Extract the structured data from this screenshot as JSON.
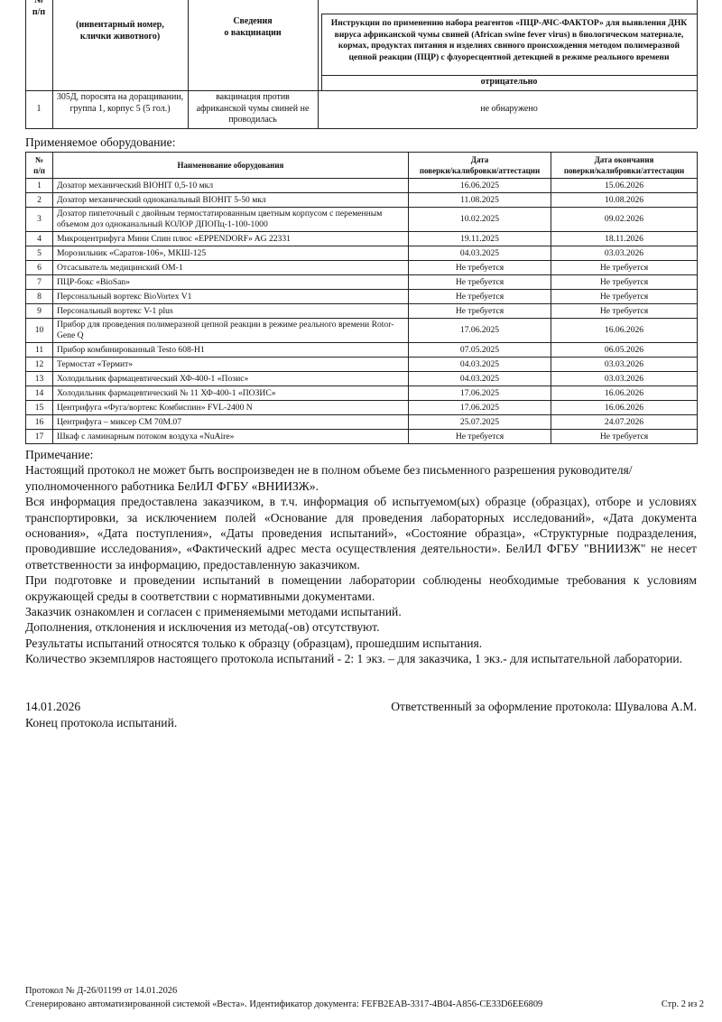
{
  "sample_table": {
    "headers": {
      "number": "№\nп/п",
      "animal": "(инвентарный номер,\nклички животного)",
      "vaccination": "Сведения\nо вакцинации",
      "method": "Инструкции по применению набора реагентов «ПЦР-АЧС-ФАКТОР» для выявления ДНК вируса африканской чумы свиней (African swine fever virus) в биологическом материале, кормах, продуктах питания и изделиях свиного происхождения методом полимеразной цепной реакции (ПЦР) с флуоресцентной детекцией в режиме реального времени"
    },
    "result_header": "отрицательно",
    "rows": [
      [
        "1",
        "305Д, поросята на доращивании, группа 1, корпус 5 (5 гол.)",
        "вакцинация против африканской чумы свиней не проводилась",
        "не обнаружено"
      ]
    ]
  },
  "equipment": {
    "title": "Применяемое оборудование:",
    "headers": [
      "№\nп/п",
      "Наименование оборудования",
      "Дата\nповерки/калибровки/аттестации",
      "Дата окончания\nповерки/калибровки/аттестации"
    ],
    "rows": [
      [
        "1",
        "Дозатор механический ВІОНІТ 0,5-10 мкл",
        "16.06.2025",
        "15.06.2026"
      ],
      [
        "2",
        "Дозатор механический одноканальный ВІОНІТ 5-50 мкл",
        "11.08.2025",
        "10.08.2026"
      ],
      [
        "3",
        "Дозатор пипеточный с двойным термостатированным цветным корпусом с переменным объемом доз одноканальный КОЛОР ДПОПц-1-100-1000",
        "10.02.2025",
        "09.02.2026"
      ],
      [
        "4",
        "Микроцентрифуга Мини Спин плюс «EPPENDORF» AG 22331",
        "19.11.2025",
        "18.11.2026"
      ],
      [
        "5",
        "Морозильник «Саратов-106», МКШ-125",
        "04.03.2025",
        "03.03.2026"
      ],
      [
        "6",
        "Отсасыватель медицинский ОМ-1",
        "Не требуется",
        "Не требуется"
      ],
      [
        "7",
        "ПЦР-бокс «BioSan»",
        "Не требуется",
        "Не требуется"
      ],
      [
        "8",
        "Персональный вортекс BioVortex V1",
        "Не требуется",
        "Не требуется"
      ],
      [
        "9",
        "Персональный вортекс V-1 plus",
        "Не требуется",
        "Не требуется"
      ],
      [
        "10",
        "Прибор для проведения полимеразной цепной реакции в режиме реального времени Rotor-Gene Q",
        "17.06.2025",
        "16.06.2026"
      ],
      [
        "11",
        "Прибор комбинированный Testo 608-H1",
        "07.05.2025",
        "06.05.2026"
      ],
      [
        "12",
        "Термостат «Термит»",
        "04.03.2025",
        "03.03.2026"
      ],
      [
        "13",
        "Холодильник фармацевтический ХФ-400-1 «Позис»",
        "04.03.2025",
        "03.03.2026"
      ],
      [
        "14",
        "Холодильник фармацевтический № 11 ХФ-400-1 «ПОЗИС»",
        "17.06.2025",
        "16.06.2026"
      ],
      [
        "15",
        "Центрифуга «Фуга/вортекс Комбиспин» FVL-2400 N",
        "17.06.2025",
        "16.06.2026"
      ],
      [
        "16",
        "Центрифуга – миксер СМ 70М.07",
        "25.07.2025",
        "24.07.2026"
      ],
      [
        "17",
        "Шкаф с ламинарным потоком воздуха «NuAire»",
        "Не требуется",
        "Не требуется"
      ]
    ]
  },
  "notes": {
    "title": "Примечание:",
    "paragraphs": [
      "Настоящий протокол не может быть воспроизведен не в полном объеме без письменного разрешения руководителя/уполномоченного работника БелИЛ ФГБУ «ВНИИЗЖ».",
      "Вся информация предоставлена заказчиком, в т.ч. информация об испытуемом(ых) образце (образцах), отборе и условиях транспортировки, за исключением полей «Основание для проведения лабораторных исследований», «Дата документа основания», «Дата поступления», «Даты проведения испытаний», «Состояние образца», «Структурные подразделения, проводившие исследования», «Фактический адрес места осуществления деятельности». БелИЛ ФГБУ \"ВНИИЗЖ\" не несет ответственности за информацию, предоставленную заказчиком.",
      "При подготовке и проведении испытаний в помещении лаборатории соблюдены необходимые требования к условиям окружающей среды в соответствии с нормативными документами.",
      "Заказчик ознакомлен и согласен с применяемыми методами испытаний.",
      "Дополнения, отклонения и исключения из метода(-ов) отсутствуют.",
      "Результаты испытаний относятся только к образцу (образцам), прошедшим испытания.",
      "Количество экземпляров настоящего протокола испытаний - 2: 1 экз. – для заказчика, 1 экз.- для испытательной лаборатории."
    ]
  },
  "signature": {
    "date": "14.01.2026",
    "responsible": "Ответственный за оформление протокола: Шувалова А.М.",
    "end": "Конец протокола испытаний."
  },
  "footer": {
    "protocol": "Протокол № Д-26/01199 от 14.01.2026",
    "generated": "Сгенерировано автоматизированной системой «Веста». Идентификатор документа: FEFB2EAB-3317-4B04-A856-CE33D6EE6809",
    "page": "Стр. 2 из 2"
  }
}
